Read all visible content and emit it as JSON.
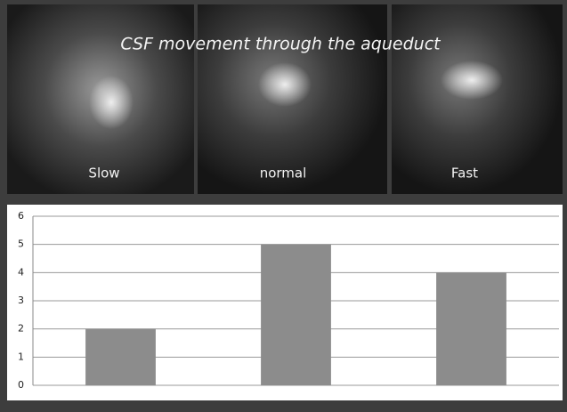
{
  "chart_data": {
    "type": "bar",
    "title": "CSF movement through the aqueduct",
    "categories": [
      "Slow",
      "normal",
      "Fast"
    ],
    "values": [
      2,
      5,
      4
    ],
    "color": "#8c8c8c",
    "ylim": [
      0,
      6
    ],
    "yticks": [
      0,
      1,
      2,
      3,
      4,
      5,
      6
    ],
    "grid": true
  }
}
